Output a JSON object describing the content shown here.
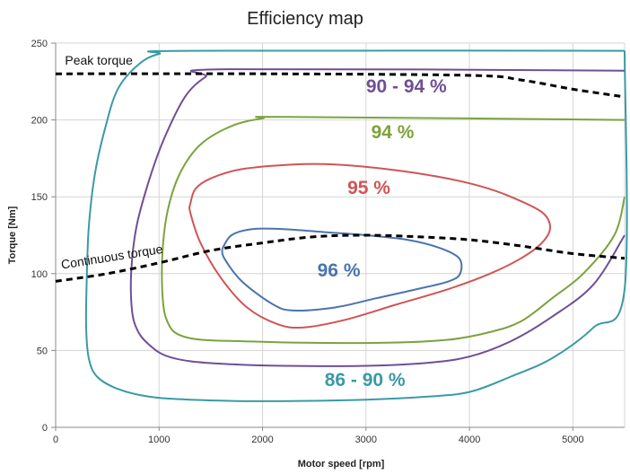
{
  "chart_data": {
    "type": "line",
    "title": "Efficiency map",
    "xlabel": "Motor speed [rpm]",
    "ylabel": "Torque [Nm]",
    "xlim": [
      0,
      5500
    ],
    "ylim": [
      0,
      250
    ],
    "xticks": [
      0,
      1000,
      2000,
      3000,
      4000,
      5000
    ],
    "yticks": [
      0,
      50,
      100,
      150,
      200,
      250
    ],
    "xtick_labels": [
      "0",
      "1000",
      "2000",
      "3000",
      "4000",
      "5000"
    ],
    "ytick_labels": [
      "0",
      "50",
      "100",
      "150",
      "200",
      "250"
    ],
    "grid": true,
    "reference_lines": [
      {
        "name": "Peak torque",
        "style": "dashed",
        "color": "#000000",
        "label_pos": [
          90,
          236
        ],
        "points": [
          [
            0,
            230
          ],
          [
            2000,
            230
          ],
          [
            4000,
            229
          ],
          [
            4500,
            226
          ],
          [
            5000,
            220
          ],
          [
            5500,
            215
          ]
        ]
      },
      {
        "name": "Continuous torque",
        "style": "dashed",
        "color": "#000000",
        "label_pos": [
          60,
          103
        ],
        "label_rotation": -9,
        "points": [
          [
            0,
            95
          ],
          [
            500,
            100
          ],
          [
            1000,
            107
          ],
          [
            1500,
            115
          ],
          [
            2000,
            120
          ],
          [
            2500,
            124
          ],
          [
            3000,
            125
          ],
          [
            3500,
            124
          ],
          [
            4000,
            122
          ],
          [
            4500,
            118
          ],
          [
            5000,
            113
          ],
          [
            5500,
            110
          ]
        ]
      }
    ],
    "contours": [
      {
        "name": "86 - 90 %",
        "color": "#3a9aa6",
        "label_pos": [
          2600,
          27
        ],
        "points": [
          [
            5500,
            245
          ],
          [
            1300,
            245
          ],
          [
            1000,
            243
          ],
          [
            800,
            236
          ],
          [
            600,
            220
          ],
          [
            480,
            195
          ],
          [
            380,
            165
          ],
          [
            320,
            130
          ],
          [
            300,
            95
          ],
          [
            295,
            65
          ],
          [
            320,
            45
          ],
          [
            400,
            33
          ],
          [
            600,
            25
          ],
          [
            900,
            20
          ],
          [
            1300,
            18
          ],
          [
            2000,
            17
          ],
          [
            3000,
            18
          ],
          [
            3600,
            20
          ],
          [
            4000,
            23
          ],
          [
            4400,
            33
          ],
          [
            4800,
            45
          ],
          [
            5200,
            65
          ],
          [
            5500,
            90
          ],
          [
            5500,
            245
          ]
        ]
      },
      {
        "name": "90 - 94 %",
        "color": "#6e4f96",
        "label_pos": [
          3000,
          218
        ],
        "points": [
          [
            5500,
            232
          ],
          [
            1650,
            233
          ],
          [
            1450,
            228
          ],
          [
            1250,
            215
          ],
          [
            1050,
            188
          ],
          [
            900,
            160
          ],
          [
            780,
            130
          ],
          [
            730,
            100
          ],
          [
            740,
            75
          ],
          [
            800,
            62
          ],
          [
            900,
            54
          ],
          [
            1050,
            47
          ],
          [
            1300,
            43
          ],
          [
            1700,
            41
          ],
          [
            2200,
            40
          ],
          [
            3000,
            40
          ],
          [
            3600,
            42
          ],
          [
            4000,
            46
          ],
          [
            4400,
            56
          ],
          [
            4800,
            72
          ],
          [
            5200,
            93
          ],
          [
            5500,
            125
          ]
        ]
      },
      {
        "name": "94 %",
        "color": "#7da23d",
        "label_pos": [
          3050,
          188
        ],
        "points": [
          [
            5500,
            200
          ],
          [
            2250,
            202
          ],
          [
            2000,
            201
          ],
          [
            1700,
            196
          ],
          [
            1400,
            184
          ],
          [
            1200,
            165
          ],
          [
            1080,
            140
          ],
          [
            1030,
            110
          ],
          [
            1040,
            80
          ],
          [
            1100,
            66
          ],
          [
            1200,
            60
          ],
          [
            1400,
            57
          ],
          [
            1800,
            56
          ],
          [
            2400,
            55
          ],
          [
            3200,
            55
          ],
          [
            3800,
            57
          ],
          [
            4200,
            62
          ],
          [
            4500,
            69
          ],
          [
            4800,
            84
          ],
          [
            5100,
            100
          ],
          [
            5400,
            125
          ],
          [
            5500,
            150
          ]
        ]
      },
      {
        "name": "95 %",
        "color": "#d15454",
        "label_pos": [
          2820,
          152
        ],
        "points": [
          [
            1300,
            145
          ],
          [
            1350,
            155
          ],
          [
            1500,
            162
          ],
          [
            1800,
            168
          ],
          [
            2300,
            171
          ],
          [
            2700,
            171
          ],
          [
            3200,
            168
          ],
          [
            3700,
            163
          ],
          [
            4100,
            157
          ],
          [
            4400,
            150
          ],
          [
            4700,
            140
          ],
          [
            4780,
            130
          ],
          [
            4700,
            120
          ],
          [
            4500,
            110
          ],
          [
            4200,
            100
          ],
          [
            3800,
            90
          ],
          [
            3300,
            80
          ],
          [
            2800,
            70
          ],
          [
            2400,
            65
          ],
          [
            2150,
            67
          ],
          [
            1850,
            78
          ],
          [
            1600,
            97
          ],
          [
            1400,
            120
          ],
          [
            1300,
            140
          ],
          [
            1300,
            145
          ]
        ]
      },
      {
        "name": "96 %",
        "color": "#4a74ad",
        "label_pos": [
          2530,
          98
        ],
        "points": [
          [
            1610,
            116
          ],
          [
            1700,
            125
          ],
          [
            1900,
            129
          ],
          [
            2200,
            129
          ],
          [
            2600,
            127
          ],
          [
            3000,
            125
          ],
          [
            3400,
            122
          ],
          [
            3700,
            117
          ],
          [
            3900,
            110
          ],
          [
            3910,
            100
          ],
          [
            3800,
            95
          ],
          [
            3500,
            90
          ],
          [
            3100,
            84
          ],
          [
            2700,
            78
          ],
          [
            2300,
            76
          ],
          [
            2100,
            80
          ],
          [
            1800,
            95
          ],
          [
            1630,
            110
          ],
          [
            1610,
            116
          ]
        ]
      }
    ]
  }
}
